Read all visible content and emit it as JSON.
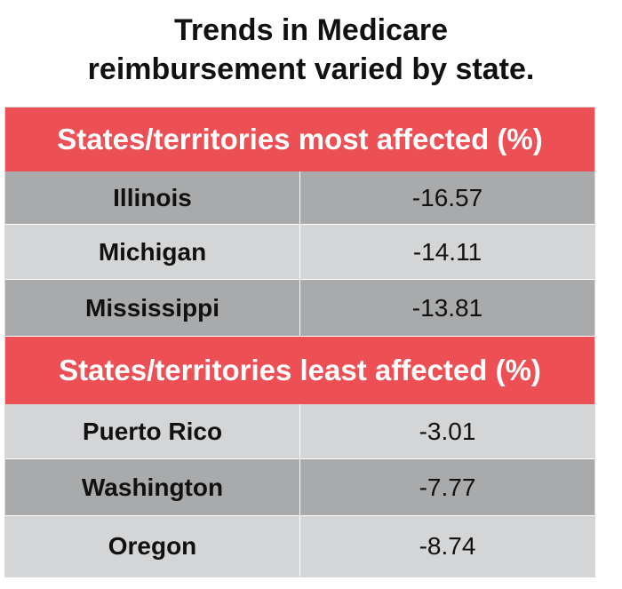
{
  "title_line1": "Trends in Medicare",
  "title_line2": "reimbursement varied by state.",
  "colors": {
    "header": "#ec5055",
    "row_dark": "#a8aaab",
    "row_light": "#d4d5d6"
  },
  "chart_data": {
    "type": "table",
    "title": "Trends in Medicare reimbursement varied by state.",
    "sections": [
      {
        "header": "States/territories most affected (%)",
        "rows": [
          {
            "name": "Illinois",
            "value": "-16.57"
          },
          {
            "name": "Michigan",
            "value": "-14.11"
          },
          {
            "name": "Mississippi",
            "value": "-13.81"
          }
        ]
      },
      {
        "header": "States/territories least affected (%)",
        "rows": [
          {
            "name": "Puerto Rico",
            "value": "-3.01"
          },
          {
            "name": "Washington",
            "value": "-7.77"
          },
          {
            "name": "Oregon",
            "value": "-8.74"
          }
        ]
      }
    ]
  }
}
